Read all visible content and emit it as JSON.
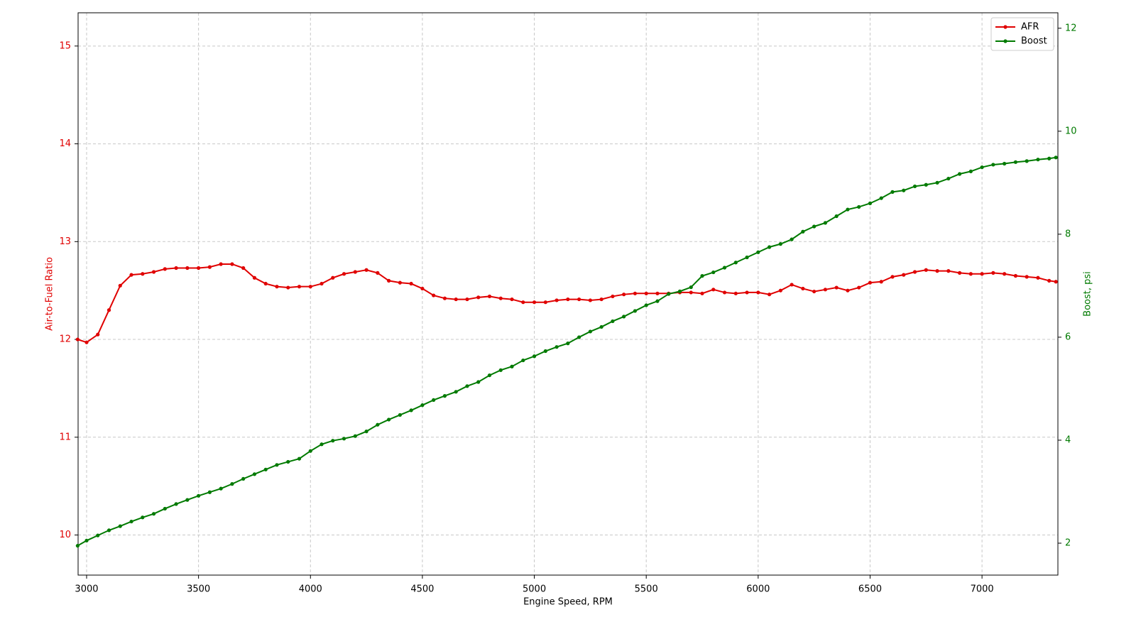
{
  "chart_data": {
    "type": "line",
    "x_label": "Engine Speed, RPM",
    "y_label": "Air-to-Fuel Ratio",
    "y2_label": "Boost, psi",
    "x": [
      2960,
      3000,
      3050,
      3100,
      3150,
      3200,
      3250,
      3300,
      3350,
      3400,
      3450,
      3500,
      3550,
      3600,
      3650,
      3700,
      3750,
      3800,
      3850,
      3900,
      3950,
      4000,
      4050,
      4100,
      4150,
      4200,
      4250,
      4300,
      4350,
      4400,
      4450,
      4500,
      4550,
      4600,
      4650,
      4700,
      4750,
      4800,
      4850,
      4900,
      4950,
      5000,
      5050,
      5100,
      5150,
      5200,
      5250,
      5300,
      5350,
      5400,
      5450,
      5500,
      5550,
      5600,
      5650,
      5700,
      5750,
      5800,
      5850,
      5900,
      5950,
      6000,
      6050,
      6100,
      6150,
      6200,
      6250,
      6300,
      6350,
      6400,
      6450,
      6500,
      6550,
      6600,
      6650,
      6700,
      6750,
      6800,
      6850,
      6900,
      6950,
      7000,
      7050,
      7100,
      7150,
      7200,
      7250,
      7300,
      7330
    ],
    "series": [
      {
        "name": "AFR",
        "color": "#e00000",
        "axis": "y",
        "values": [
          12.0,
          11.97,
          12.05,
          12.3,
          12.55,
          12.66,
          12.67,
          12.69,
          12.72,
          12.73,
          12.73,
          12.73,
          12.74,
          12.77,
          12.77,
          12.73,
          12.63,
          12.57,
          12.54,
          12.53,
          12.54,
          12.54,
          12.57,
          12.63,
          12.67,
          12.69,
          12.71,
          12.68,
          12.6,
          12.58,
          12.57,
          12.52,
          12.45,
          12.42,
          12.41,
          12.41,
          12.43,
          12.44,
          12.42,
          12.41,
          12.38,
          12.38,
          12.38,
          12.4,
          12.41,
          12.41,
          12.4,
          12.41,
          12.44,
          12.46,
          12.47,
          12.47,
          12.47,
          12.47,
          12.48,
          12.48,
          12.47,
          12.51,
          12.48,
          12.47,
          12.48,
          12.48,
          12.46,
          12.5,
          12.56,
          12.52,
          12.49,
          12.51,
          12.53,
          12.5,
          12.53,
          12.58,
          12.59,
          12.64,
          12.66,
          12.69,
          12.71,
          12.7,
          12.7,
          12.68,
          12.67,
          12.67,
          12.68,
          12.67,
          12.65,
          12.64,
          12.63,
          12.6,
          12.59
        ]
      },
      {
        "name": "Boost",
        "color": "#007a00",
        "axis": "y2",
        "values": [
          1.95,
          2.05,
          2.15,
          2.25,
          2.33,
          2.42,
          2.5,
          2.57,
          2.67,
          2.76,
          2.84,
          2.92,
          2.99,
          3.06,
          3.15,
          3.25,
          3.34,
          3.43,
          3.52,
          3.58,
          3.64,
          3.79,
          3.92,
          3.99,
          4.03,
          4.08,
          4.17,
          4.3,
          4.4,
          4.49,
          4.58,
          4.68,
          4.78,
          4.86,
          4.94,
          5.05,
          5.13,
          5.26,
          5.36,
          5.43,
          5.55,
          5.63,
          5.73,
          5.81,
          5.88,
          6.0,
          6.11,
          6.2,
          6.31,
          6.4,
          6.51,
          6.62,
          6.7,
          6.84,
          6.89,
          6.97,
          7.19,
          7.26,
          7.35,
          7.45,
          7.55,
          7.65,
          7.75,
          7.81,
          7.9,
          8.05,
          8.15,
          8.22,
          8.35,
          8.48,
          8.53,
          8.6,
          8.7,
          8.82,
          8.85,
          8.93,
          8.96,
          9.0,
          9.08,
          9.17,
          9.22,
          9.3,
          9.35,
          9.37,
          9.4,
          9.42,
          9.45,
          9.47,
          9.49
        ]
      }
    ],
    "xlim": [
      2962,
      7339
    ],
    "xticks": [
      3000,
      3500,
      4000,
      4500,
      5000,
      5500,
      6000,
      6500,
      7000
    ],
    "ylim": [
      9.59,
      15.34
    ],
    "yticks": [
      10,
      11,
      12,
      13,
      14,
      15
    ],
    "y2lim": [
      1.38,
      12.3
    ],
    "y2ticks": [
      2,
      4,
      6,
      8,
      10,
      12
    ],
    "grid": true,
    "legend": "upper right"
  }
}
